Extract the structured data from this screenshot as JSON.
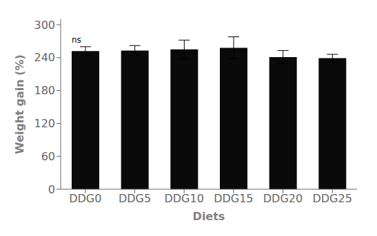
{
  "chart_data": {
    "type": "bar",
    "categories": [
      "DDG0",
      "DDG5",
      "DDG10",
      "DDG15",
      "DDG20",
      "DDG25"
    ],
    "values": [
      252,
      253,
      255,
      258,
      241,
      239
    ],
    "errors": [
      8,
      9,
      17,
      20,
      12,
      7
    ],
    "color": "#0a0a0a",
    "xlabel": "Diets",
    "ylabel": "Weight gain (%)",
    "ylim": [
      0,
      310
    ],
    "yticks": [
      0,
      60,
      120,
      180,
      240,
      300
    ],
    "grid": false,
    "annotations": [
      {
        "text": "ns",
        "category": "DDG0"
      }
    ]
  }
}
